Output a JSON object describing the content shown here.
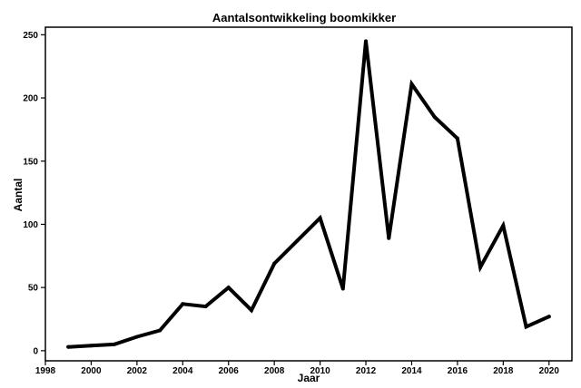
{
  "chart_data": {
    "type": "line",
    "title": "Aantalsontwikkeling boomkikker",
    "xlabel": "Jaar",
    "ylabel": "Aantal",
    "xlim": [
      1998,
      2021
    ],
    "ylim": [
      -8,
      256
    ],
    "x_ticks": [
      1998,
      2000,
      2002,
      2004,
      2006,
      2008,
      2010,
      2012,
      2014,
      2016,
      2018,
      2020
    ],
    "y_ticks": [
      0,
      50,
      100,
      150,
      200,
      250
    ],
    "grid": false,
    "legend": "none",
    "line_color": "#000000",
    "series": [
      {
        "x": [
          1999,
          2000,
          2001,
          2002,
          2003,
          2004,
          2005,
          2006,
          2007,
          2008,
          2009,
          2010,
          2011,
          2012,
          2013,
          2014,
          2015,
          2016,
          2017,
          2018,
          2019,
          2020
        ],
        "values": [
          3,
          4,
          5,
          11,
          16,
          37,
          35,
          50,
          32,
          69,
          87,
          105,
          49,
          245,
          89,
          211,
          185,
          168,
          66,
          99,
          19,
          27
        ]
      }
    ]
  }
}
